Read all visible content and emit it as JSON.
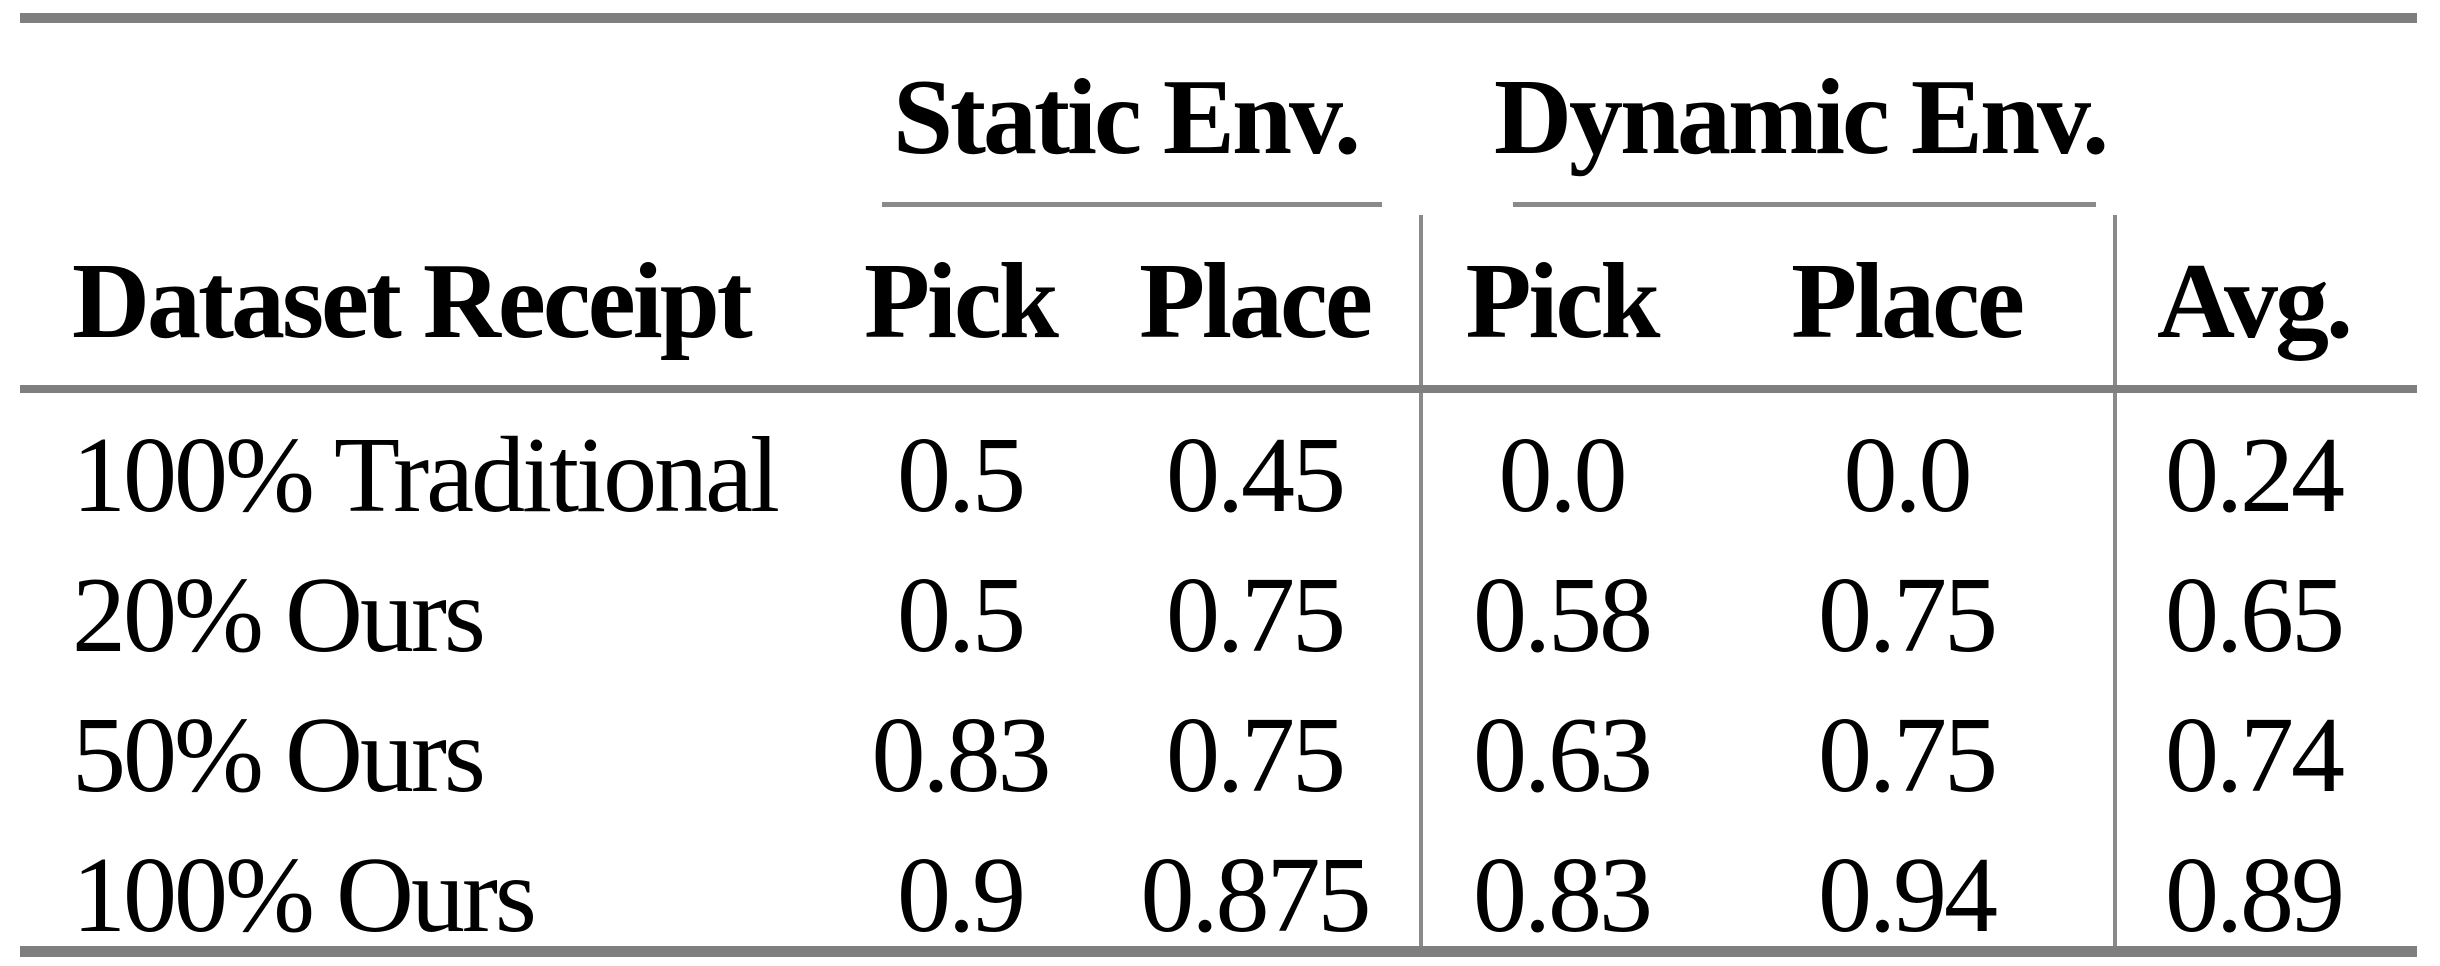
{
  "colors": {
    "background": "#ffffff",
    "text": "#000000",
    "thick_rule": "#7f7f7f",
    "thin_rule": "#8a8a8a"
  },
  "table": {
    "header": {
      "dataset_col": "Dataset Receipt",
      "groups": [
        {
          "label": "Static Env.",
          "sub": [
            "Pick",
            "Place"
          ]
        },
        {
          "label": "Dynamic Env.",
          "sub": [
            "Pick",
            "Place"
          ]
        }
      ],
      "avg_col": "Avg."
    },
    "rows": [
      {
        "label": "100% Traditional",
        "values": [
          "0.5",
          "0.45",
          "0.0",
          "0.0",
          "0.24"
        ]
      },
      {
        "label": "20% Ours",
        "values": [
          "0.5",
          "0.75",
          "0.58",
          "0.75",
          "0.65"
        ]
      },
      {
        "label": "50% Ours",
        "values": [
          "0.83",
          "0.75",
          "0.63",
          "0.75",
          "0.74"
        ]
      },
      {
        "label": "100% Ours",
        "values": [
          "0.9",
          "0.875",
          "0.83",
          "0.94",
          "0.89"
        ]
      }
    ]
  },
  "chart_data": {
    "type": "table",
    "columns": [
      "Dataset Receipt",
      "Static Env. Pick",
      "Static Env. Place",
      "Dynamic Env. Pick",
      "Dynamic Env. Place",
      "Avg."
    ],
    "rows": [
      [
        "100% Traditional",
        0.5,
        0.45,
        0.0,
        0.0,
        0.24
      ],
      [
        "20% Ours",
        0.5,
        0.75,
        0.58,
        0.75,
        0.65
      ],
      [
        "50% Ours",
        0.83,
        0.75,
        0.63,
        0.75,
        0.74
      ],
      [
        "100% Ours",
        0.9,
        0.875,
        0.83,
        0.94,
        0.89
      ]
    ]
  }
}
